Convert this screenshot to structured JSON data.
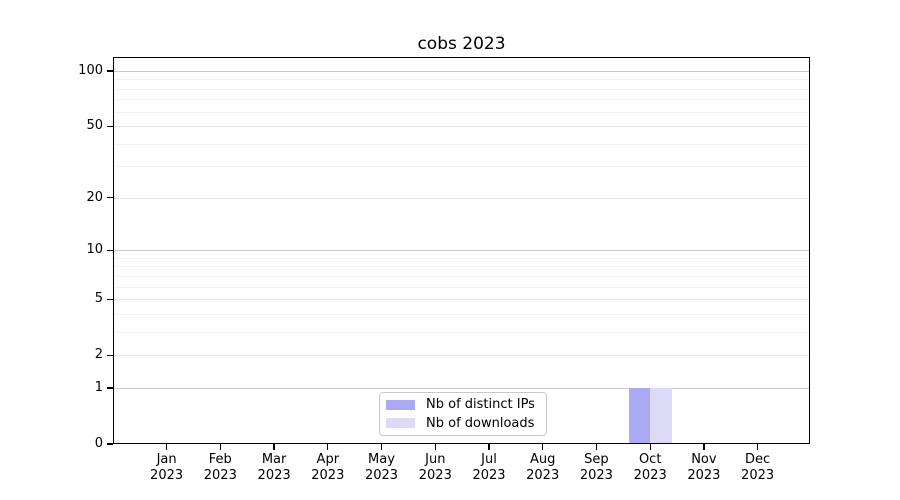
{
  "chart_data": {
    "type": "bar",
    "title": "cobs 2023",
    "categories": [
      "Jan 2023",
      "Feb 2023",
      "Mar 2023",
      "Apr 2023",
      "May 2023",
      "Jun 2023",
      "Jul 2023",
      "Aug 2023",
      "Sep 2023",
      "Oct 2023",
      "Nov 2023",
      "Dec 2023"
    ],
    "series": [
      {
        "name": "Nb of distinct IPs",
        "color": "#a9a9f4",
        "values": [
          0,
          0,
          0,
          0,
          0,
          0,
          0,
          0,
          0,
          1,
          0,
          0
        ]
      },
      {
        "name": "Nb of downloads",
        "color": "#dbdbf8",
        "values": [
          0,
          0,
          0,
          0,
          0,
          0,
          0,
          0,
          0,
          1,
          0,
          0
        ]
      }
    ],
    "xlabel": "",
    "ylabel": "",
    "yscale": "log1p",
    "ylim": [
      0,
      119
    ],
    "y_major_ticks": [
      0,
      1,
      2,
      5,
      10,
      20,
      50,
      100
    ],
    "y_minor_ticks": [
      3,
      4,
      6,
      7,
      8,
      9,
      30,
      40,
      60,
      70,
      80,
      90
    ],
    "grid": true,
    "legend_position": "lower-center-inside"
  }
}
